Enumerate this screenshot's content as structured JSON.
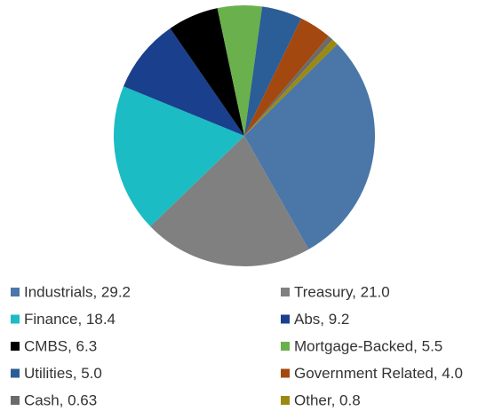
{
  "chart_data": {
    "type": "pie",
    "categories": [
      "Industrials",
      "Treasury",
      "Finance",
      "Abs",
      "CMBS",
      "Mortgage-Backed",
      "Utilities",
      "Government Related",
      "Cash",
      "Other"
    ],
    "labels": [
      "Industrials, 29.2",
      "Treasury, 21.0",
      "Finance, 18.4",
      "Abs, 9.2",
      "CMBS, 6.3",
      "Mortgage-Backed, 5.5",
      "Utilities, 5.0",
      "Government Related, 4.0",
      "Cash, 0.63",
      "Other, 0.8"
    ],
    "values": [
      29.2,
      21.0,
      18.4,
      9.2,
      6.3,
      5.5,
      5.0,
      4.0,
      0.63,
      0.8
    ],
    "colors": [
      "#4a77a8",
      "#808080",
      "#1bbcc4",
      "#1a3f8c",
      "#000000",
      "#6ab04c",
      "#2b5e96",
      "#a3480f",
      "#6b6b6b",
      "#9c8a10"
    ]
  }
}
